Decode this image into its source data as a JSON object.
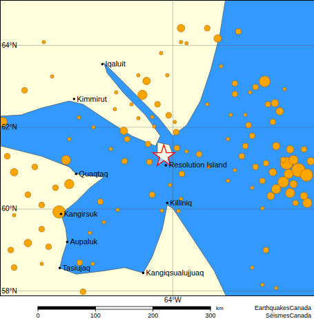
{
  "chart_data": {
    "type": "map",
    "xlim": [
      -73.26,
      -56.4
    ],
    "ylim": [
      57.88,
      65.1
    ],
    "xticks": [
      {
        "value": -64,
        "label": "64°W"
      }
    ],
    "yticks": [
      {
        "value": 58,
        "label": "58°N"
      },
      {
        "value": 60,
        "label": "60°N"
      },
      {
        "value": 62,
        "label": "62°N"
      },
      {
        "value": 64,
        "label": "64°N"
      }
    ],
    "grid": true,
    "land": [
      [
        [
          -74,
          65.5
        ],
        [
          -61.04,
          65.5
        ],
        [
          -61.48,
          64.25
        ],
        [
          -61.96,
          63.41
        ],
        [
          -62.52,
          62.64
        ],
        [
          -63.26,
          62.05
        ],
        [
          -64.0,
          61.79
        ],
        [
          -64.74,
          62.22
        ],
        [
          -65.85,
          62.73
        ],
        [
          -66.96,
          63.24
        ],
        [
          -67.7,
          63.57
        ],
        [
          -67.52,
          63.32
        ],
        [
          -66.59,
          62.81
        ],
        [
          -65.48,
          62.3
        ],
        [
          -64.67,
          61.79
        ],
        [
          -64.93,
          61.54
        ],
        [
          -66.22,
          61.79
        ],
        [
          -67.7,
          62.22
        ],
        [
          -68.82,
          62.56
        ],
        [
          -69.56,
          62.64
        ],
        [
          -71.04,
          62.47
        ],
        [
          -72.15,
          62.3
        ],
        [
          -74,
          62.25
        ]
      ],
      [
        [
          -74,
          61.63
        ],
        [
          -71.04,
          61.29
        ],
        [
          -69.56,
          61.03
        ],
        [
          -69.19,
          60.86
        ],
        [
          -67.7,
          60.78
        ],
        [
          -68.45,
          60.52
        ],
        [
          -69.19,
          60.18
        ],
        [
          -70.0,
          59.88
        ],
        [
          -69.74,
          59.51
        ],
        [
          -69.67,
          59.2
        ],
        [
          -69.93,
          58.83
        ],
        [
          -70.07,
          58.56
        ],
        [
          -69.19,
          58.41
        ],
        [
          -67.7,
          58.49
        ],
        [
          -66.59,
          58.57
        ],
        [
          -65.59,
          58.44
        ],
        [
          -65.11,
          58.83
        ],
        [
          -64.56,
          59.51
        ],
        [
          -64.3,
          60.1
        ],
        [
          -64.0,
          60.02
        ],
        [
          -63.26,
          59.51
        ],
        [
          -62.52,
          59.0
        ],
        [
          -61.78,
          58.49
        ],
        [
          -60.85,
          57.6
        ],
        [
          -74,
          57.6
        ]
      ],
      [
        [
          -64.82,
          61.63
        ],
        [
          -64.19,
          61.57
        ],
        [
          -64.0,
          61.34
        ],
        [
          -64.37,
          61.17
        ],
        [
          -64.82,
          61.29
        ]
      ]
    ],
    "places": [
      {
        "name": "Iqaluit",
        "lon": -67.78,
        "lat": 63.54
      },
      {
        "name": "Kimmirut",
        "lon": -69.3,
        "lat": 62.69
      },
      {
        "name": "Quaqtaq",
        "lon": -69.19,
        "lat": 60.86
      },
      {
        "name": "Resolution Island",
        "lon": -64.37,
        "lat": 61.07
      },
      {
        "name": "Killiniq",
        "lon": -64.3,
        "lat": 60.15
      },
      {
        "name": "Kangirsuk",
        "lon": -70.0,
        "lat": 59.88
      },
      {
        "name": "Aupaluk",
        "lon": -69.67,
        "lat": 59.2
      },
      {
        "name": "Tasiujaq",
        "lon": -70.07,
        "lat": 58.56
      },
      {
        "name": "Kangiqsualujjuaq",
        "lon": -65.59,
        "lat": 58.44
      }
    ],
    "epicenter": {
      "lon": -64.48,
      "lat": 61.29,
      "color": "#ff0000",
      "marker": "star"
    },
    "earthquakes": {
      "color": "#ffa500",
      "lon": [
        -63.56,
        -63.56,
        -63.26,
        -64.63,
        -65.85,
        -65.41,
        -65.63,
        -64.82,
        -64.22,
        -65.11,
        -63.89,
        -63.82,
        -63.78,
        -63.26,
        -66.22,
        -67.11,
        -67.04,
        -64.3,
        -66.63,
        -66.45,
        -69.04,
        -68.26,
        -67.33,
        -66.59,
        -65.33,
        -65.26,
        -63.52,
        -65.11,
        -64.15,
        -63.56,
        -63.7,
        -64.59,
        -62.59,
        -62.07,
        -65.85,
        -65.0,
        -73.15,
        -72.89,
        -72.52,
        -71.41,
        -69.74,
        -69.56,
        -70.3,
        -71.78,
        -71.04,
        -72.52,
        -71.04,
        -70.11,
        -71.78,
        -70.67,
        -72.7,
        -72.52,
        -71.04,
        -69.0,
        -68.82,
        -68.3,
        -67.89,
        -67.7,
        -68.45,
        -66.96,
        -71.96,
        -70.48,
        -70.93,
        -69.56,
        -58.89,
        -60.67,
        -59.85,
        -59.07,
        -58.52,
        -58.26,
        -58.0,
        -60.67,
        -60.89,
        -60.11,
        -59.93,
        -58.63,
        -59.74,
        -60.11,
        -61.04,
        -58.45,
        -57.7,
        -57.52,
        -57.89,
        -57.26,
        -56.82,
        -57.78,
        -58.07,
        -58.45,
        -58.63,
        -59.0,
        -59.56,
        -60.3,
        -59.19,
        -58.74,
        -57.7,
        -56.96,
        -56.78,
        -57.41,
        -57.52,
        -59.19,
        -59.74,
        -60.67,
        -59.0,
        -59.74,
        -59.19,
        -58.45,
        -61.59,
        -62.15,
        -60.48,
        -61.41,
        -58.07,
        -61.04,
        -62.15,
        -59.56,
        -56.96,
        -56.59
      ],
      "lat": [
        64.42,
        64.08,
        64.05,
        63.81,
        63.27,
        63.13,
        62.79,
        62.56,
        62.29,
        62.25,
        62.13,
        61.88,
        61.49,
        61.41,
        62.56,
        62.44,
        62.85,
        63.27,
        61.91,
        61.71,
        62.24,
        62.0,
        61.47,
        61.17,
        61.59,
        61.15,
        60.86,
        60.35,
        60.59,
        60.25,
        59.95,
        59.96,
        61.34,
        61.03,
        62.22,
        62.02,
        62.13,
        61.29,
        60.9,
        61.03,
        61.2,
        60.61,
        60.52,
        60.35,
        60.1,
        59.85,
        59.51,
        59.93,
        59.17,
        59.08,
        59.0,
        58.57,
        58.66,
        58.69,
        57.98,
        58.66,
        60.18,
        59.68,
        59.42,
        59.98,
        62.9,
        63.24,
        64.08,
        61.71,
        62.56,
        63.07,
        62.85,
        63.12,
        62.59,
        62.39,
        62.93,
        62.81,
        62.3,
        62.3,
        62.05,
        62.13,
        61.79,
        61.54,
        61.71,
        61.54,
        61.46,
        61.2,
        61.12,
        60.95,
        60.83,
        60.86,
        60.66,
        60.49,
        60.9,
        61.12,
        61.03,
        61.29,
        60.69,
        60.32,
        60.39,
        60.32,
        60.15,
        60.15,
        60.61,
        60.02,
        60.52,
        60.95,
        59.0,
        58.57,
        58.15,
        58.07,
        64.17,
        64.42,
        64.34,
        63.49,
        61.2,
        60.69,
        62.56,
        62.98,
        61.46,
        61.17
      ],
      "magnitude": [
        2.5,
        1.5,
        1.5,
        1.5,
        1.5,
        2.5,
        3.0,
        2.0,
        2.0,
        1.5,
        1.5,
        2.0,
        2.0,
        1.5,
        1.5,
        1.5,
        1.5,
        1.5,
        2.5,
        2.0,
        1.5,
        1.5,
        1.5,
        2.0,
        2.0,
        2.0,
        2.0,
        2.0,
        1.5,
        1.5,
        1.5,
        1.5,
        2.0,
        1.5,
        1.5,
        1.5,
        3.0,
        2.0,
        2.5,
        2.0,
        3.0,
        3.0,
        2.0,
        2.0,
        2.0,
        1.5,
        2.0,
        4.0,
        2.5,
        2.0,
        2.0,
        2.0,
        1.5,
        2.0,
        2.0,
        1.5,
        2.0,
        1.5,
        1.5,
        1.5,
        2.0,
        1.5,
        1.5,
        1.5,
        2.0,
        2.0,
        1.5,
        3.5,
        2.5,
        2.5,
        1.5,
        2.0,
        1.5,
        1.5,
        2.0,
        2.0,
        2.0,
        2.0,
        1.5,
        2.5,
        2.5,
        3.0,
        4.0,
        4.5,
        4.0,
        3.0,
        3.5,
        3.0,
        2.5,
        2.0,
        2.0,
        2.0,
        2.0,
        2.5,
        3.0,
        2.5,
        3.0,
        2.0,
        2.5,
        1.5,
        1.5,
        1.5,
        2.0,
        1.5,
        1.5,
        1.5,
        2.5,
        2.0,
        2.0,
        1.5,
        2.0,
        1.5,
        1.5,
        2.0,
        2.0,
        2.5
      ]
    },
    "scale_bar": {
      "ticks": [
        0,
        100,
        200,
        300
      ],
      "unit": "km"
    },
    "credits": [
      "EarthquakesCanada",
      "SéismesCanada"
    ]
  }
}
